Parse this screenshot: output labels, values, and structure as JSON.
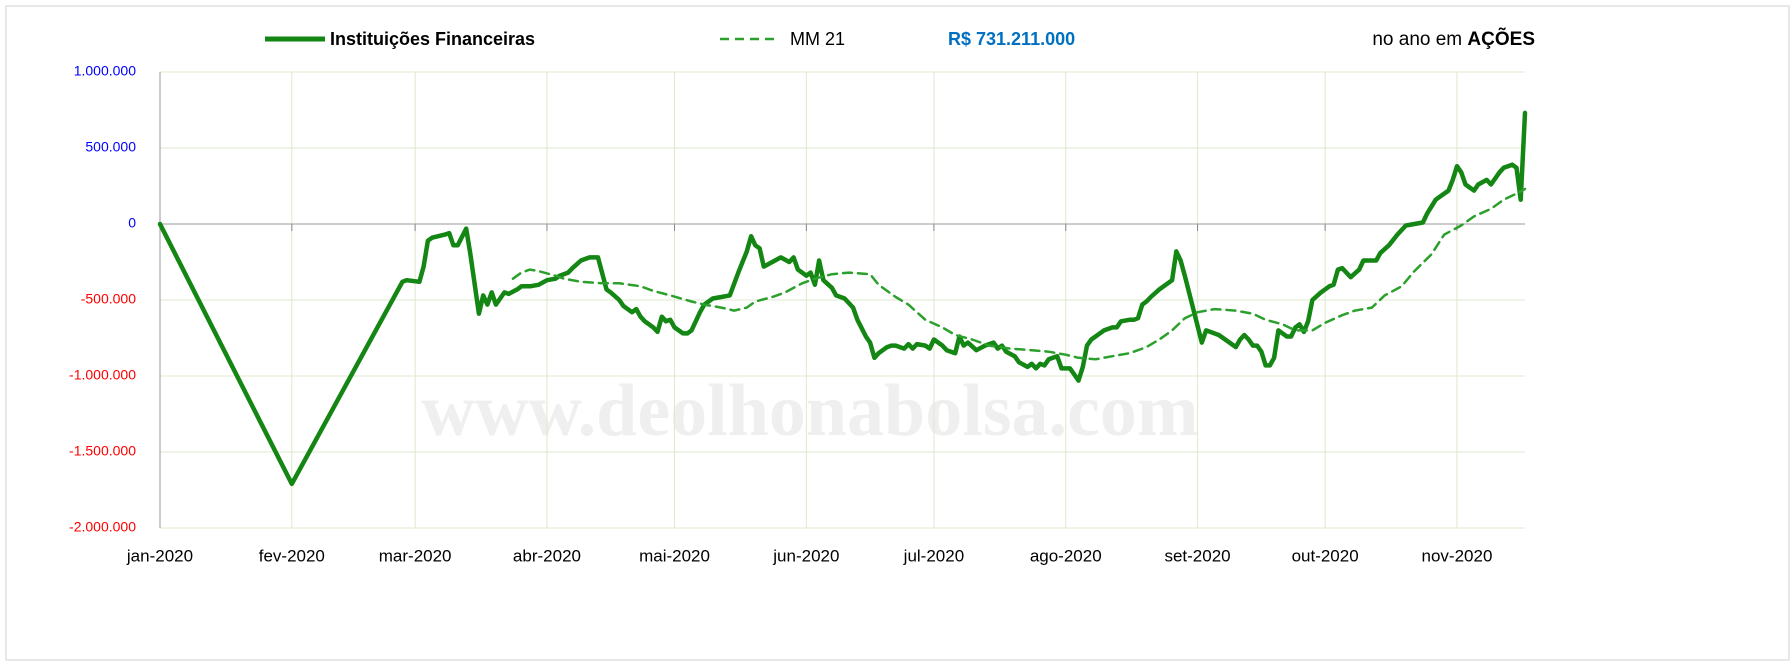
{
  "chart_data": {
    "type": "line",
    "annotation": "R$ 731.211.000",
    "note": "no ano em",
    "note_bold": "AÇÕES",
    "watermark": "www.deolhonabolsa.com",
    "xlim": [
      0,
      321
    ],
    "xticks": [
      {
        "value": 0,
        "label": "jan-2020"
      },
      {
        "value": 31,
        "label": "fev-2020"
      },
      {
        "value": 60,
        "label": "mar-2020"
      },
      {
        "value": 91,
        "label": "abr-2020"
      },
      {
        "value": 121,
        "label": "mai-2020"
      },
      {
        "value": 152,
        "label": "jun-2020"
      },
      {
        "value": 182,
        "label": "jul-2020"
      },
      {
        "value": 213,
        "label": "ago-2020"
      },
      {
        "value": 244,
        "label": "set-2020"
      },
      {
        "value": 274,
        "label": "out-2020"
      },
      {
        "value": 305,
        "label": "nov-2020"
      }
    ],
    "ylim": [
      -2000000,
      1000000
    ],
    "yticks": [
      {
        "value": -2000000,
        "label": "-2.000.000"
      },
      {
        "value": -1500000,
        "label": "-1.500.000"
      },
      {
        "value": -1000000,
        "label": "-1.000.000"
      },
      {
        "value": -500000,
        "label": "-500.000"
      },
      0,
      {
        "value": 500000,
        "label": "500.000"
      },
      {
        "value": 1000000,
        "label": "1.000.000"
      }
    ],
    "ytick_color": "#0000ff",
    "ytick_negative_color": "#ff0000",
    "grid": true,
    "grid_color": "#dde8cc",
    "series": [
      {
        "name": "Instituições Financeiras",
        "color": "#138613",
        "dash": false,
        "x": [
          0,
          31,
          57,
          58,
          61,
          62,
          63,
          64,
          67,
          68,
          69,
          70,
          72,
          73,
          75,
          76,
          77,
          78,
          79,
          81,
          82,
          84,
          85,
          87,
          89,
          91,
          93,
          94,
          96,
          97,
          99,
          101,
          103,
          105,
          106,
          108,
          109,
          111,
          112,
          113,
          114,
          116,
          117,
          118,
          119,
          120,
          121,
          123,
          124,
          125,
          127,
          128,
          130,
          132,
          134,
          136,
          138,
          139,
          140,
          141,
          142,
          144,
          146,
          148,
          149,
          150,
          152,
          153,
          154,
          155,
          156,
          158,
          159,
          161,
          163,
          164,
          166,
          167,
          168,
          169,
          171,
          172,
          173,
          175,
          176,
          177,
          178,
          180,
          181,
          182,
          184,
          185,
          187,
          188,
          189,
          190,
          192,
          194,
          196,
          197,
          198,
          199,
          201,
          202,
          204,
          205,
          206,
          207,
          208,
          209,
          211,
          212,
          214,
          215,
          216,
          217,
          218,
          219,
          221,
          222,
          224,
          225,
          226,
          228,
          229,
          230,
          231,
          232,
          233,
          235,
          237,
          238,
          239,
          240,
          241,
          243,
          245,
          246,
          247,
          249,
          251,
          253,
          254,
          255,
          256,
          257,
          258,
          259,
          260,
          261,
          262,
          263,
          264,
          265,
          266,
          267,
          268,
          269,
          270,
          271,
          273,
          275,
          276,
          277,
          278,
          280,
          282,
          283,
          285,
          286,
          287,
          289,
          291,
          293,
          295,
          297,
          298,
          300,
          301,
          303,
          304,
          305,
          306,
          307,
          309,
          310,
          312,
          313,
          315,
          316,
          318,
          319,
          320,
          321
        ],
        "values": [
          0,
          -1710000,
          -380000,
          -370000,
          -380000,
          -280000,
          -110000,
          -90000,
          -70000,
          -60000,
          -140000,
          -140000,
          -30000,
          -200000,
          -590000,
          -470000,
          -530000,
          -450000,
          -530000,
          -450000,
          -460000,
          -430000,
          -410000,
          -410000,
          -400000,
          -370000,
          -360000,
          -340000,
          -320000,
          -290000,
          -240000,
          -220000,
          -220000,
          -430000,
          -450000,
          -500000,
          -540000,
          -580000,
          -560000,
          -610000,
          -640000,
          -680000,
          -710000,
          -610000,
          -640000,
          -630000,
          -680000,
          -720000,
          -720000,
          -700000,
          -580000,
          -530000,
          -490000,
          -480000,
          -470000,
          -320000,
          -180000,
          -80000,
          -140000,
          -160000,
          -280000,
          -250000,
          -220000,
          -250000,
          -220000,
          -300000,
          -340000,
          -320000,
          -400000,
          -240000,
          -370000,
          -420000,
          -470000,
          -490000,
          -550000,
          -630000,
          -740000,
          -780000,
          -880000,
          -850000,
          -810000,
          -800000,
          -800000,
          -820000,
          -790000,
          -820000,
          -790000,
          -800000,
          -820000,
          -760000,
          -800000,
          -830000,
          -850000,
          -740000,
          -800000,
          -780000,
          -830000,
          -800000,
          -780000,
          -820000,
          -800000,
          -840000,
          -870000,
          -910000,
          -940000,
          -920000,
          -950000,
          -920000,
          -930000,
          -890000,
          -870000,
          -950000,
          -950000,
          -990000,
          -1030000,
          -940000,
          -800000,
          -760000,
          -720000,
          -700000,
          -680000,
          -680000,
          -640000,
          -630000,
          -630000,
          -620000,
          -530000,
          -510000,
          -480000,
          -430000,
          -390000,
          -370000,
          -180000,
          -240000,
          -340000,
          -560000,
          -780000,
          -700000,
          -710000,
          -730000,
          -770000,
          -810000,
          -760000,
          -730000,
          -760000,
          -800000,
          -800000,
          -840000,
          -930000,
          -930000,
          -880000,
          -700000,
          -720000,
          -740000,
          -740000,
          -680000,
          -660000,
          -710000,
          -640000,
          -500000,
          -450000,
          -410000,
          -400000,
          -300000,
          -290000,
          -350000,
          -300000,
          -240000,
          -240000,
          -240000,
          -190000,
          -140000,
          -70000,
          -10000,
          0,
          10000,
          70000,
          160000,
          180000,
          220000,
          290000,
          380000,
          340000,
          260000,
          220000,
          260000,
          290000,
          260000,
          340000,
          370000,
          390000,
          370000,
          160000,
          731211
        ]
      },
      {
        "name": "MM 21",
        "color": "#2ca02c",
        "dash": true,
        "x": [
          83,
          85,
          87,
          89,
          93,
          95,
          99,
          104,
          108,
          113,
          116,
          120,
          125,
          128,
          132,
          135,
          138,
          140,
          144,
          147,
          151,
          154,
          158,
          162,
          167,
          169,
          173,
          176,
          180,
          184,
          187,
          191,
          195,
          200,
          205,
          209,
          213,
          216,
          220,
          224,
          228,
          232,
          235,
          238,
          241,
          244,
          248,
          253,
          257,
          260,
          264,
          267,
          271,
          274,
          278,
          281,
          285,
          288,
          292,
          295,
          299,
          302,
          306,
          309,
          313,
          316,
          319,
          321
        ],
        "values": [
          -360000,
          -320000,
          -300000,
          -310000,
          -340000,
          -360000,
          -380000,
          -390000,
          -390000,
          -410000,
          -440000,
          -470000,
          -510000,
          -530000,
          -550000,
          -570000,
          -550000,
          -510000,
          -480000,
          -450000,
          -390000,
          -360000,
          -330000,
          -320000,
          -330000,
          -400000,
          -480000,
          -530000,
          -630000,
          -680000,
          -730000,
          -760000,
          -800000,
          -820000,
          -830000,
          -840000,
          -860000,
          -880000,
          -890000,
          -870000,
          -850000,
          -810000,
          -760000,
          -700000,
          -620000,
          -580000,
          -560000,
          -570000,
          -590000,
          -630000,
          -660000,
          -700000,
          -700000,
          -650000,
          -600000,
          -570000,
          -550000,
          -470000,
          -410000,
          -310000,
          -200000,
          -70000,
          -10000,
          50000,
          100000,
          160000,
          200000,
          230000
        ]
      }
    ]
  }
}
